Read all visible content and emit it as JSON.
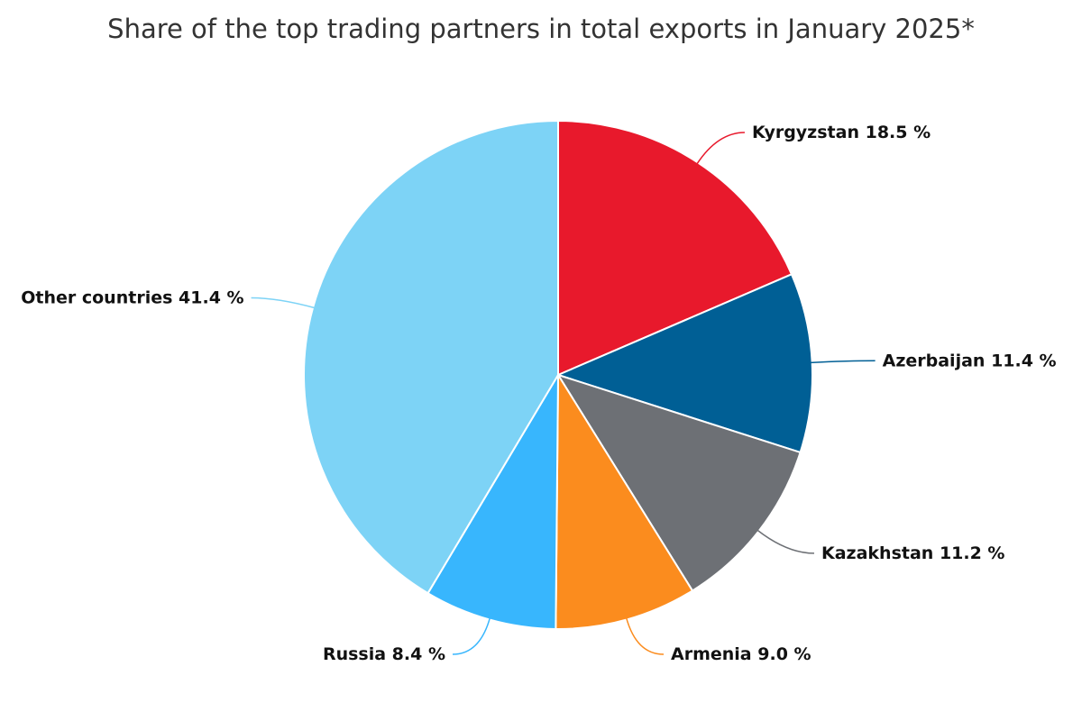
{
  "chart_data": {
    "type": "pie",
    "title": "Share of the top trading partners in total exports in January 2025*",
    "categories": [
      "Kyrgyzstan",
      "Azerbaijan",
      "Kazakhstan",
      "Armenia",
      "Russia",
      "Other countries"
    ],
    "values": [
      18.5,
      11.4,
      11.2,
      9.0,
      8.4,
      41.4
    ],
    "value_labels": [
      "18.5 %",
      "11.4 %",
      "11.2 %",
      "9.0 %",
      "8.4 %",
      "41.4 %"
    ],
    "colors": [
      "#e8192c",
      "#005f95",
      "#6d7075",
      "#fb8c1e",
      "#38b6fd",
      "#7dd3f6"
    ]
  }
}
